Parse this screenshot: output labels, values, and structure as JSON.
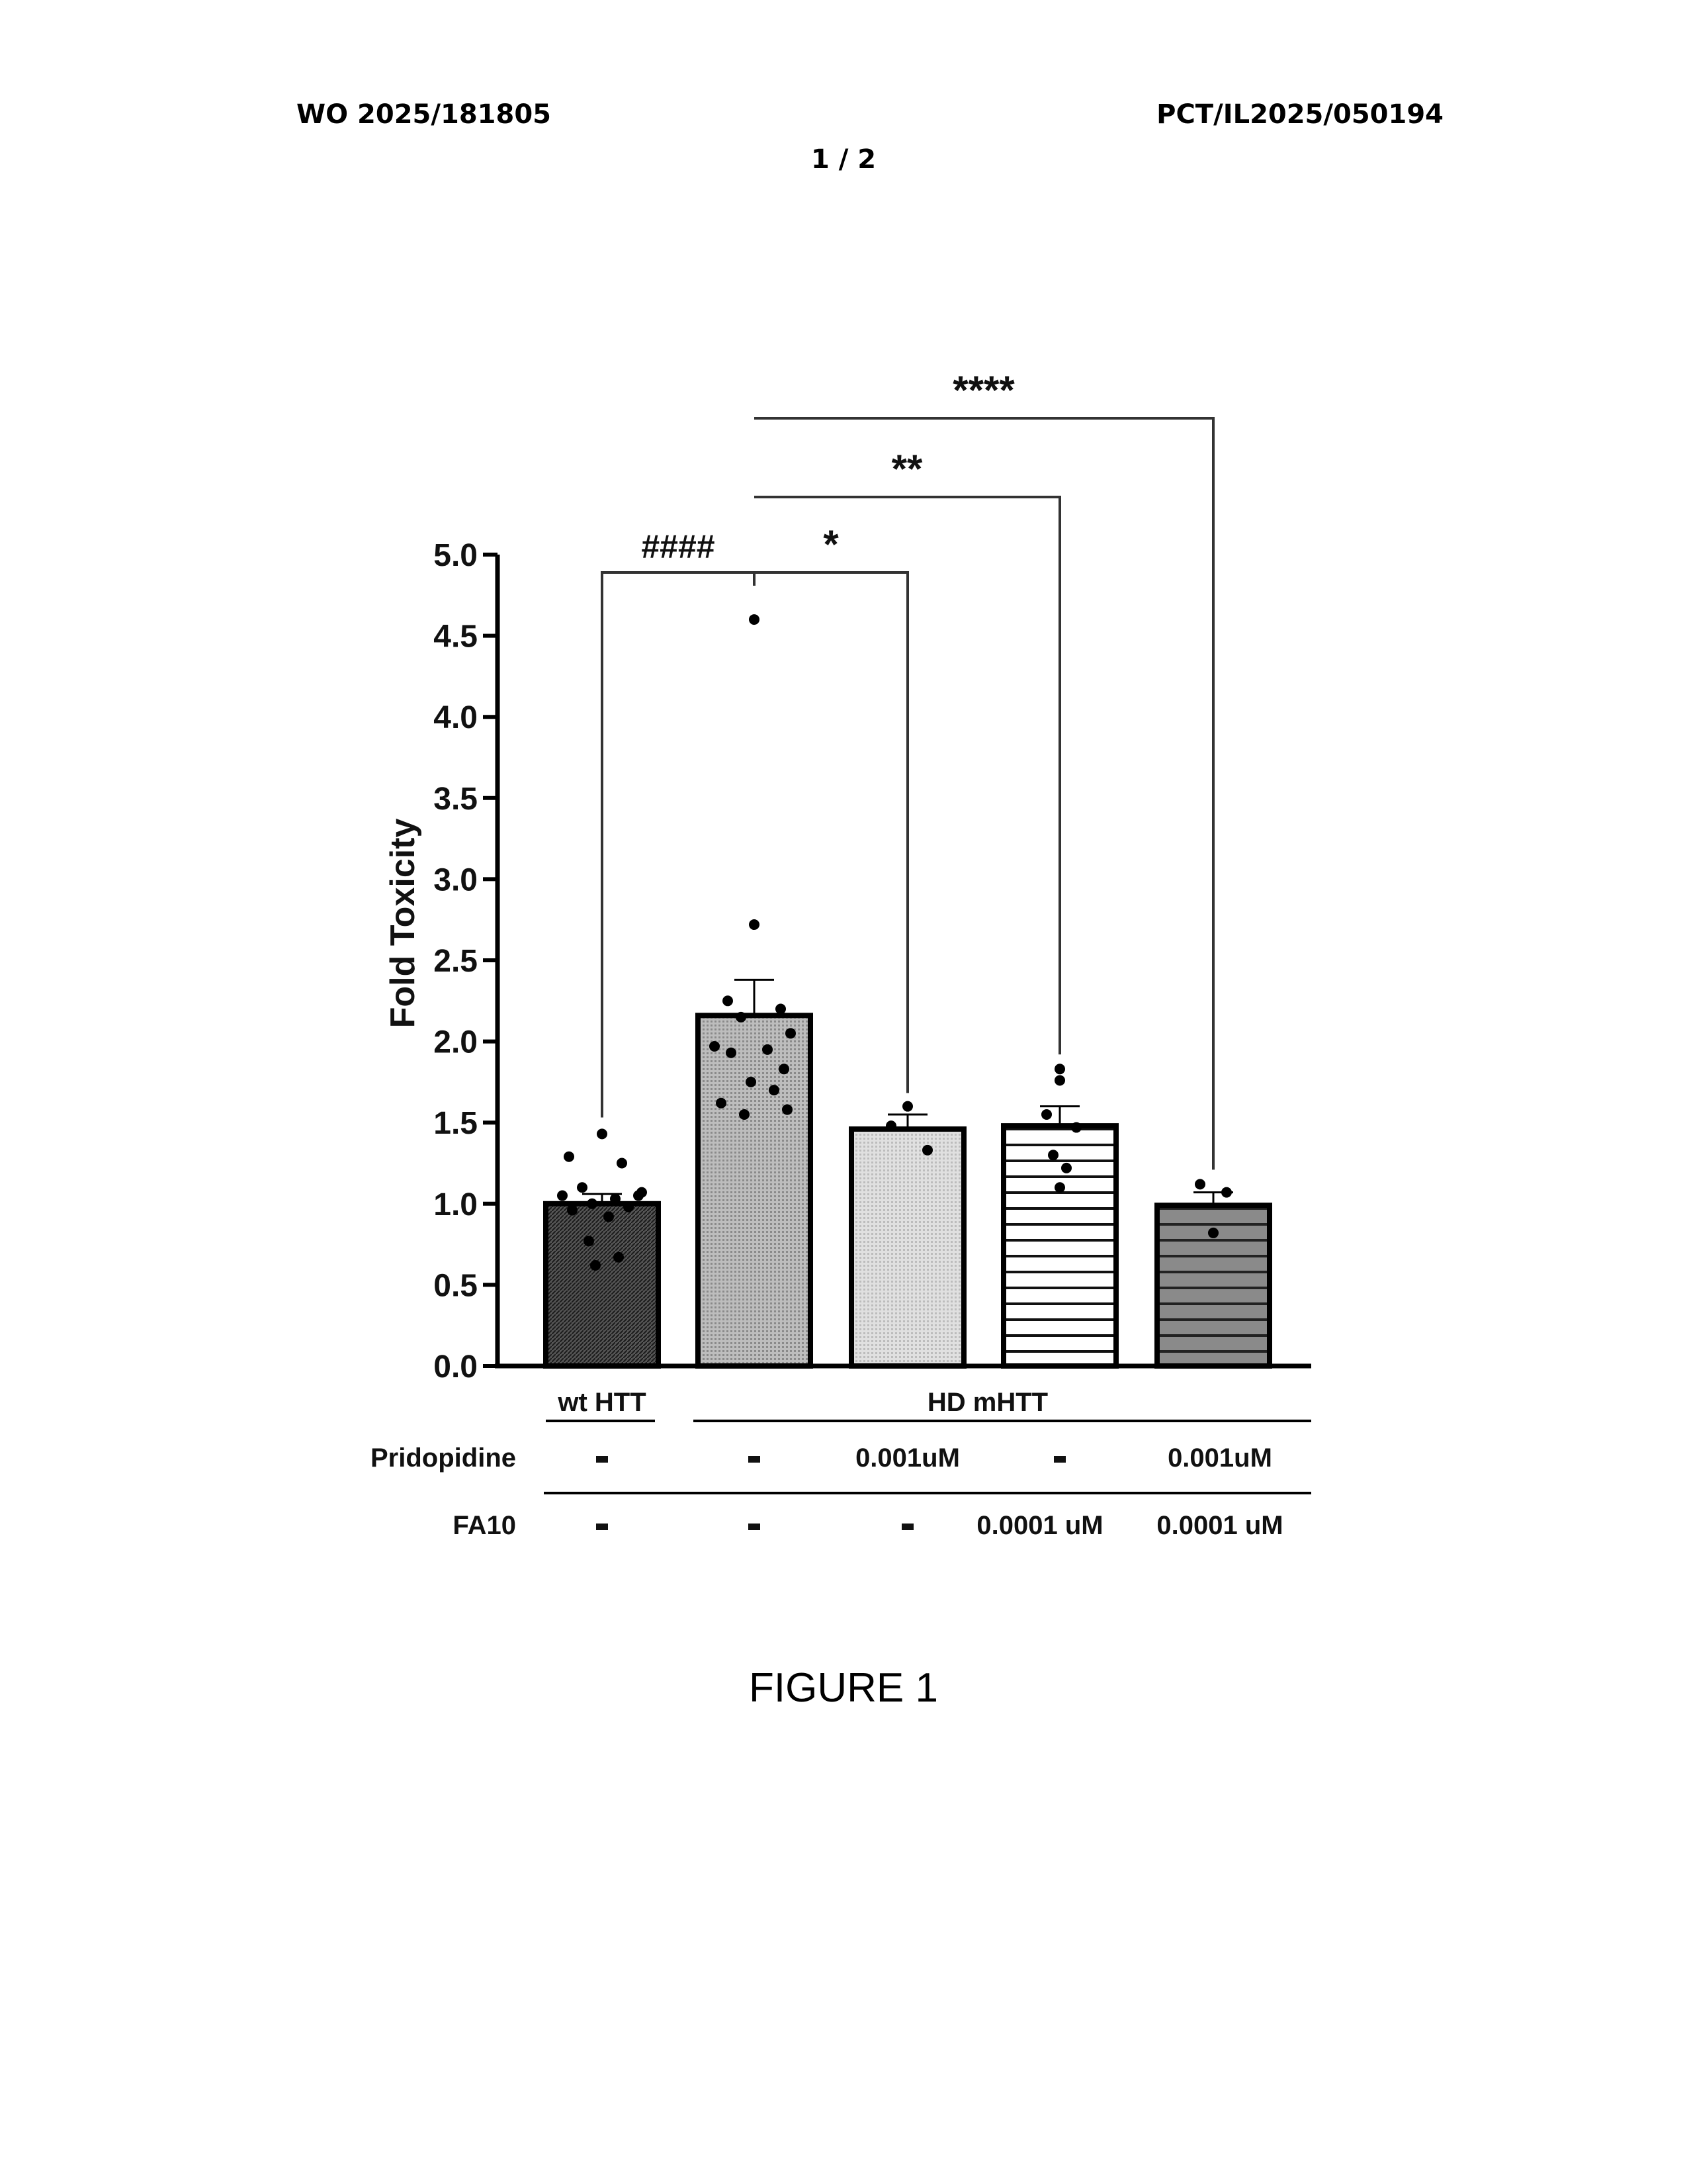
{
  "header": {
    "left": "WO 2025/181805",
    "right": "PCT/IL2025/050194",
    "page": "1 / 2"
  },
  "figure_caption": "FIGURE 1",
  "chart_data": {
    "type": "bar",
    "ylabel": "Fold Toxicity",
    "ylim": [
      0,
      5
    ],
    "yticks": [
      "0.0",
      "0.5",
      "1.0",
      "1.5",
      "2.0",
      "2.5",
      "3.0",
      "3.5",
      "4.0",
      "4.5",
      "5.0"
    ],
    "bars": [
      {
        "mean": 1.0,
        "sem": 0.06,
        "points": [
          1.43,
          1.29,
          1.25,
          1.1,
          1.05,
          1.05,
          1.03,
          1.0,
          0.98,
          0.96,
          0.92,
          0.77,
          0.67,
          0.62,
          1.07
        ]
      },
      {
        "mean": 2.16,
        "sem": 0.22,
        "points": [
          4.6,
          2.72,
          2.25,
          2.2,
          2.15,
          2.05,
          1.97,
          1.95,
          1.93,
          1.83,
          1.75,
          1.7,
          1.62,
          1.58,
          1.55
        ]
      },
      {
        "mean": 1.46,
        "sem": 0.09,
        "points": [
          1.6,
          1.48,
          1.33
        ]
      },
      {
        "mean": 1.48,
        "sem": 0.12,
        "points": [
          1.83,
          1.76,
          1.55,
          1.47,
          1.3,
          1.22,
          1.1
        ]
      },
      {
        "mean": 0.99,
        "sem": 0.08,
        "points": [
          1.12,
          1.07,
          0.82
        ]
      }
    ],
    "groups": [
      "wt HTT",
      "HD mHTT"
    ],
    "row_labels": [
      "Pridopidine",
      "FA10"
    ],
    "pridopidine": [
      "-",
      "-",
      "0.001uM",
      "-",
      "0.001uM"
    ],
    "fa10": [
      "-",
      "-",
      "-",
      "0.0001 uM",
      "0.0001 uM"
    ],
    "significance": [
      {
        "from": 0,
        "to": 1,
        "label": "####"
      },
      {
        "from": 1,
        "to": 2,
        "label": "*"
      },
      {
        "from": 1,
        "to": 3,
        "label": "**"
      },
      {
        "from": 1,
        "to": 4,
        "label": "****"
      }
    ]
  }
}
